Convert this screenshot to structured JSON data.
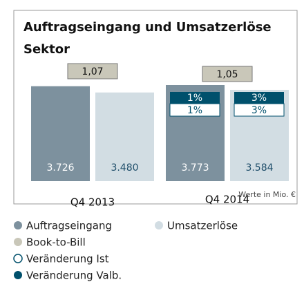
{
  "chart_data": {
    "type": "bar",
    "title": "Auftragseingang und Umsatzerlöse Sektor",
    "categories": [
      "Q4 2013",
      "Q4 2014"
    ],
    "series": [
      {
        "name": "Auftragseingang",
        "color": "#7d919e",
        "label_color": "#ffffff",
        "values": [
          3726,
          3773
        ],
        "value_labels": [
          "3.726",
          "3.773"
        ],
        "change_ist": [
          null,
          1
        ],
        "change_ist_labels": [
          null,
          "1%"
        ],
        "change_valb": [
          null,
          1
        ],
        "change_valb_labels": [
          null,
          "1%"
        ]
      },
      {
        "name": "Umsatzerlöse",
        "color": "#d2dde3",
        "label_color": "#1f4e6a",
        "values": [
          3480,
          3584
        ],
        "value_labels": [
          "3.480",
          "3.584"
        ],
        "change_ist": [
          null,
          3
        ],
        "change_ist_labels": [
          null,
          "3%"
        ],
        "change_valb": [
          null,
          3
        ],
        "change_valb_labels": [
          null,
          "3%"
        ]
      }
    ],
    "book_to_bill": {
      "name": "Book-to-Bill",
      "color": "#c9c7b9",
      "values": [
        1.07,
        1.05
      ],
      "value_labels": [
        "1,07",
        "1,05"
      ]
    },
    "change_legend": [
      {
        "name": "Veränderung Ist",
        "color": "#ffffff"
      },
      {
        "name": "Veränderung Valb.",
        "color": "#00506c"
      }
    ],
    "note": "Werte in Mio. €"
  }
}
